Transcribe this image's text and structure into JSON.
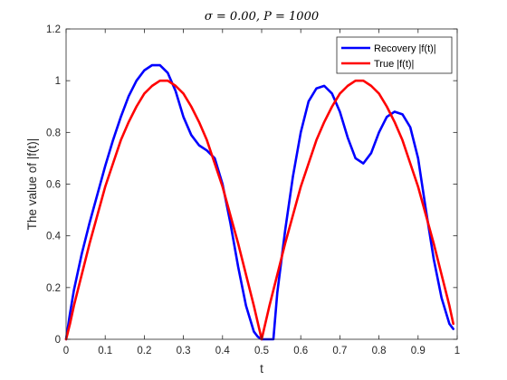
{
  "chart_data": {
    "type": "line",
    "title": "σ = 0.00,     P = 1000",
    "xlabel": "t",
    "ylabel": "The value of |f(t)|",
    "xlim": [
      0,
      1
    ],
    "ylim": [
      0,
      1.2
    ],
    "xticks": [
      0,
      0.1,
      0.2,
      0.3,
      0.4,
      0.5,
      0.6,
      0.7,
      0.8,
      0.9,
      1
    ],
    "xtick_labels": [
      "0",
      "0.1",
      "0.2",
      "0.3",
      "0.4",
      "0.5",
      "0.6",
      "0.7",
      "0.8",
      "0.9",
      "1"
    ],
    "yticks": [
      0,
      0.2,
      0.4,
      0.6,
      0.8,
      1,
      1.2
    ],
    "ytick_labels": [
      "0",
      "0.2",
      "0.4",
      "0.6",
      "0.8",
      "1",
      "1.2"
    ],
    "grid": false,
    "legend_position": "top-right",
    "series": [
      {
        "name": "Recovery |f(t)|",
        "color": "#0000ff",
        "x": [
          0,
          0.01,
          0.02,
          0.04,
          0.06,
          0.08,
          0.1,
          0.12,
          0.14,
          0.16,
          0.18,
          0.2,
          0.22,
          0.24,
          0.26,
          0.28,
          0.3,
          0.32,
          0.34,
          0.36,
          0.38,
          0.4,
          0.42,
          0.44,
          0.46,
          0.48,
          0.49,
          0.5,
          0.52,
          0.53,
          0.54,
          0.56,
          0.58,
          0.6,
          0.62,
          0.64,
          0.66,
          0.68,
          0.7,
          0.72,
          0.74,
          0.76,
          0.78,
          0.8,
          0.82,
          0.84,
          0.86,
          0.88,
          0.9,
          0.92,
          0.94,
          0.96,
          0.98,
          0.99
        ],
        "values": [
          0.0,
          0.1,
          0.19,
          0.33,
          0.45,
          0.56,
          0.67,
          0.77,
          0.86,
          0.94,
          1.0,
          1.04,
          1.06,
          1.06,
          1.03,
          0.96,
          0.86,
          0.79,
          0.75,
          0.73,
          0.7,
          0.6,
          0.45,
          0.28,
          0.13,
          0.03,
          0.01,
          0.0,
          0.0,
          0.0,
          0.18,
          0.42,
          0.63,
          0.8,
          0.92,
          0.97,
          0.98,
          0.95,
          0.88,
          0.78,
          0.7,
          0.68,
          0.72,
          0.8,
          0.86,
          0.88,
          0.87,
          0.82,
          0.7,
          0.5,
          0.31,
          0.16,
          0.06,
          0.04
        ]
      },
      {
        "name": "True |f(t)|",
        "color": "#ff0000",
        "x": [
          0,
          0.01,
          0.02,
          0.04,
          0.06,
          0.08,
          0.1,
          0.12,
          0.14,
          0.16,
          0.18,
          0.2,
          0.22,
          0.24,
          0.25,
          0.26,
          0.28,
          0.3,
          0.32,
          0.34,
          0.36,
          0.38,
          0.4,
          0.42,
          0.44,
          0.46,
          0.48,
          0.5,
          0.52,
          0.54,
          0.56,
          0.58,
          0.6,
          0.62,
          0.64,
          0.66,
          0.68,
          0.7,
          0.72,
          0.74,
          0.75,
          0.76,
          0.78,
          0.8,
          0.82,
          0.84,
          0.86,
          0.88,
          0.9,
          0.92,
          0.94,
          0.96,
          0.98,
          0.99
        ],
        "values": [
          0.0,
          0.06,
          0.13,
          0.25,
          0.37,
          0.48,
          0.59,
          0.68,
          0.77,
          0.84,
          0.9,
          0.95,
          0.98,
          1.0,
          1.0,
          1.0,
          0.98,
          0.95,
          0.9,
          0.84,
          0.77,
          0.68,
          0.59,
          0.48,
          0.37,
          0.25,
          0.13,
          0.0,
          0.13,
          0.25,
          0.37,
          0.48,
          0.59,
          0.68,
          0.77,
          0.84,
          0.9,
          0.95,
          0.98,
          1.0,
          1.0,
          1.0,
          0.98,
          0.95,
          0.9,
          0.84,
          0.77,
          0.68,
          0.59,
          0.48,
          0.37,
          0.25,
          0.13,
          0.06
        ]
      }
    ]
  }
}
